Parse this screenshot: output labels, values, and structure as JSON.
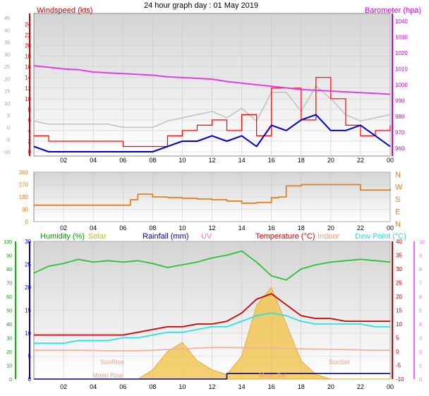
{
  "title": "24 hour graph day : 01 May 2019",
  "x_ticks": [
    "02",
    "04",
    "06",
    "08",
    "10",
    "12",
    "14",
    "16",
    "18",
    "20",
    "22",
    "00"
  ],
  "colors": {
    "wind_avg": "#0000cc",
    "wind_gust": "#ff0000",
    "wind_bearing": "#c0c0c0",
    "barometer": "#e040e0",
    "direction": "#e08020",
    "humidity": "#30c030",
    "solar": "#f0c040",
    "rainfall": "#0000aa",
    "uv": "#ff80ff",
    "temperature": "#cc0000",
    "indoor": "#f5b0a0",
    "dewpoint": "#30e0e0",
    "labels_wind": "#cc0000",
    "labels_baro": "#cc00cc",
    "labels_humidity": "#00a000",
    "labels_solar": "#c0c000",
    "labels_rain": "#0000aa",
    "labels_uv": "#ff60ff",
    "labels_temp": "#cc0000",
    "labels_indoor": "#f0a080",
    "labels_dew": "#30d8d8"
  },
  "chart_data": [
    {
      "type": "line",
      "panel": "wind",
      "left_label": "Windspeed (kts)",
      "right_label": "Barometer (hpa)",
      "left_axis_ticks": [
        0,
        2,
        4,
        6,
        8,
        10,
        12,
        14,
        16,
        18,
        20,
        22,
        24
      ],
      "left_axis_outer_ticks": [
        -10,
        -5,
        0,
        5,
        10,
        15,
        20,
        25,
        30,
        35,
        40,
        45
      ],
      "right_axis_ticks": [
        960,
        970,
        980,
        990,
        1000,
        1010,
        1020,
        1030,
        1040
      ],
      "ylim_wind": [
        0,
        25
      ],
      "ylim_baro": [
        955,
        1045
      ],
      "x": [
        0,
        1,
        2,
        3,
        4,
        5,
        6,
        7,
        8,
        9,
        10,
        11,
        12,
        13,
        14,
        15,
        16,
        17,
        18,
        19,
        20,
        21,
        22,
        23,
        24
      ],
      "series": [
        {
          "name": "Windspeed",
          "values": [
            1,
            0,
            0,
            0,
            0,
            0,
            0,
            0,
            0,
            1,
            2,
            2,
            3,
            2,
            3,
            1,
            5,
            4,
            6,
            7,
            4,
            4,
            5,
            3,
            1
          ]
        },
        {
          "name": "Gust",
          "values": [
            3,
            2,
            2,
            2,
            2,
            2,
            1,
            1,
            1,
            3,
            4,
            5,
            6,
            4,
            7,
            3,
            12,
            12,
            6,
            14,
            10,
            5,
            3,
            4,
            5
          ]
        },
        {
          "name": "Barometer",
          "values": [
            1012,
            1011,
            1010,
            1009.5,
            1008,
            1007.5,
            1007,
            1006.5,
            1006,
            1005,
            1004.5,
            1004,
            1003.5,
            1002,
            1001,
            1000,
            999,
            998,
            997,
            996.5,
            996,
            995.5,
            995,
            994.5,
            994
          ]
        }
      ]
    },
    {
      "type": "line",
      "panel": "direction",
      "left_axis_ticks": [
        0,
        90,
        180,
        270,
        360
      ],
      "right_axis_labels": [
        "N",
        "W",
        "S",
        "E",
        "N"
      ],
      "ylim": [
        0,
        360
      ],
      "x": [
        0,
        2,
        4,
        6,
        6.5,
        7,
        8,
        9,
        10,
        11,
        12,
        13,
        14,
        15,
        16,
        16.5,
        17,
        18,
        20,
        22,
        24
      ],
      "series": [
        {
          "name": "Wind Direction",
          "values": [
            120,
            120,
            120,
            120,
            160,
            200,
            180,
            175,
            170,
            165,
            160,
            150,
            135,
            140,
            175,
            180,
            260,
            270,
            270,
            230,
            240
          ]
        }
      ]
    },
    {
      "type": "line",
      "panel": "temperature",
      "legend": [
        "Humidity (%)",
        "Solar",
        "Rainfall (mm)",
        "UV",
        "Temperature (°C)",
        "Indoor",
        "Dew Point (°C)"
      ],
      "outer_left_ticks": [
        0,
        10,
        20,
        30,
        40,
        50,
        60,
        70,
        80,
        90,
        100
      ],
      "left_axis_ticks": [
        0,
        5,
        10,
        15,
        20,
        25,
        30
      ],
      "right_axis_ticks": [
        -10,
        -5,
        0,
        5,
        10,
        15,
        20,
        25,
        30,
        35,
        40
      ],
      "outer_right_ticks": [
        0,
        1,
        2,
        3,
        4,
        5,
        6,
        7,
        8,
        9,
        10
      ],
      "annotations": [
        "SunRise",
        "SunSet",
        "Moon Rise",
        "Moon Set"
      ],
      "ylim_humidity": [
        0,
        100
      ],
      "ylim_temp": [
        -10,
        40
      ],
      "x": [
        0,
        1,
        2,
        3,
        4,
        5,
        6,
        7,
        8,
        9,
        10,
        11,
        12,
        13,
        14,
        15,
        16,
        17,
        18,
        19,
        20,
        21,
        22,
        23,
        24
      ],
      "series": [
        {
          "name": "Humidity",
          "values": [
            77,
            82,
            84,
            87,
            85,
            86,
            85,
            86,
            84,
            81,
            83,
            85,
            88,
            90,
            93,
            85,
            75,
            72,
            80,
            83,
            85,
            86,
            87,
            86,
            85
          ]
        },
        {
          "name": "Indoor",
          "values": [
            21,
            21,
            21,
            21,
            20.8,
            20.5,
            20.5,
            20.6,
            21,
            21.5,
            22,
            22.5,
            23,
            23,
            22.8,
            22.5,
            22.4,
            22.2,
            22,
            21.8,
            21.6,
            21.4,
            21.2,
            21,
            21
          ]
        },
        {
          "name": "Temperature",
          "values": [
            6,
            6,
            6,
            6,
            6,
            6,
            6,
            7,
            8,
            9,
            9,
            10,
            10,
            11,
            14,
            19,
            21,
            17,
            13,
            12,
            12,
            11,
            11,
            11,
            11
          ]
        },
        {
          "name": "Dew Point",
          "values": [
            3,
            3,
            3,
            4,
            4,
            4,
            5,
            5,
            6,
            7,
            7,
            8,
            9,
            9,
            11,
            13,
            14,
            13,
            11,
            10,
            10,
            10,
            10,
            9,
            9
          ]
        },
        {
          "name": "Solar",
          "values": [
            0,
            0,
            0,
            0,
            0,
            0,
            0,
            0,
            2,
            6,
            8,
            4,
            2,
            1,
            5,
            16,
            20,
            12,
            4,
            1,
            0,
            0,
            0,
            0,
            0
          ]
        },
        {
          "name": "Rainfall",
          "values": [
            0,
            0,
            0,
            0,
            0,
            0,
            0,
            0,
            0,
            0,
            0,
            0,
            0,
            1.2,
            1.2,
            1.2,
            1.2,
            1.2,
            1.2,
            1.2,
            1.2,
            1.2,
            1.2,
            1.2,
            1.2
          ]
        }
      ]
    }
  ]
}
